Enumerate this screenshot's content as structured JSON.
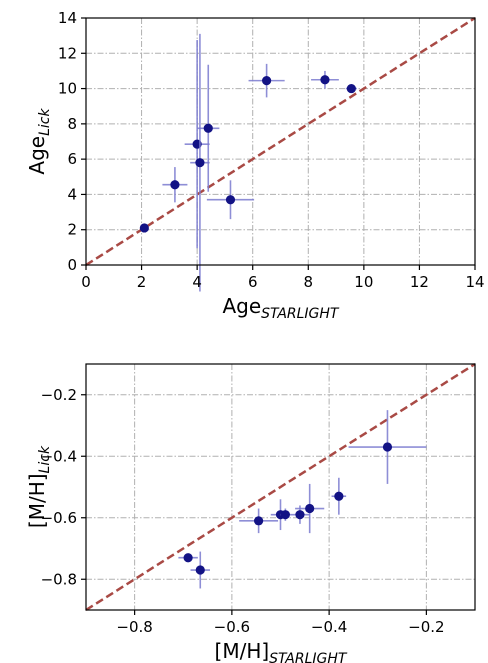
{
  "chart_data": [
    {
      "type": "scatter",
      "xlabel": "Age",
      "xlabel_sub": "STARLIGHT",
      "ylabel": "Age",
      "ylabel_sub": "Lick",
      "xlim": [
        0,
        14
      ],
      "ylim": [
        0,
        14
      ],
      "xticks": [
        0,
        2,
        4,
        6,
        8,
        10,
        12,
        14
      ],
      "yticks": [
        0,
        2,
        4,
        6,
        8,
        10,
        12,
        14
      ],
      "xtick_labels": [
        "0",
        "2",
        "4",
        "6",
        "8",
        "10",
        "12",
        "14"
      ],
      "ytick_labels": [
        "0",
        "2",
        "4",
        "6",
        "8",
        "10",
        "12",
        "14"
      ],
      "grid": true,
      "reference_line": "y = x",
      "points": [
        {
          "x": 2.1,
          "y": 2.1,
          "xerr": 0.15,
          "yerr": 0.15
        },
        {
          "x": 3.2,
          "y": 4.55,
          "xerr": 0.45,
          "yerr": 1.0
        },
        {
          "x": 4.0,
          "y": 6.85,
          "xerr": 0.45,
          "yerr": 5.9
        },
        {
          "x": 4.1,
          "y": 5.8,
          "xerr": 0.35,
          "yerr": 7.3
        },
        {
          "x": 4.4,
          "y": 7.75,
          "xerr": 0.4,
          "yerr": 3.6
        },
        {
          "x": 5.2,
          "y": 3.7,
          "xerr": 0.85,
          "yerr": 1.1
        },
        {
          "x": 6.5,
          "y": 10.45,
          "xerr": 0.65,
          "yerr": 0.95
        },
        {
          "x": 8.6,
          "y": 10.5,
          "xerr": 0.5,
          "yerr": 0.5
        },
        {
          "x": 9.55,
          "y": 10.0,
          "xerr": 0.2,
          "yerr": 0.1
        }
      ]
    },
    {
      "type": "scatter",
      "xlabel": "[M/H]",
      "xlabel_sub": "STARLIGHT",
      "ylabel": "[M/H]",
      "ylabel_sub": "Lick",
      "xlim": [
        -0.9,
        -0.1
      ],
      "ylim": [
        -0.9,
        -0.1
      ],
      "xticks": [
        -0.8,
        -0.6,
        -0.4,
        -0.2
      ],
      "yticks": [
        -0.8,
        -0.6,
        -0.4,
        -0.2
      ],
      "xtick_labels": [
        "−0.8",
        "−0.6",
        "−0.4",
        "−0.2"
      ],
      "ytick_labels": [
        "−0.8",
        "−0.6",
        "−0.4",
        "−0.2"
      ],
      "grid": true,
      "reference_line": "y = x",
      "points": [
        {
          "x": -0.69,
          "y": -0.73,
          "xerr": 0.02,
          "yerr": 0.01
        },
        {
          "x": -0.665,
          "y": -0.77,
          "xerr": 0.02,
          "yerr": 0.06
        },
        {
          "x": -0.545,
          "y": -0.61,
          "xerr": 0.04,
          "yerr": 0.04
        },
        {
          "x": -0.5,
          "y": -0.59,
          "xerr": 0.02,
          "yerr": 0.05
        },
        {
          "x": -0.49,
          "y": -0.59,
          "xerr": 0.01,
          "yerr": 0.02
        },
        {
          "x": -0.46,
          "y": -0.59,
          "xerr": 0.02,
          "yerr": 0.03
        },
        {
          "x": -0.44,
          "y": -0.57,
          "xerr": 0.03,
          "yerr": 0.08
        },
        {
          "x": -0.38,
          "y": -0.53,
          "xerr": 0.015,
          "yerr": 0.06
        },
        {
          "x": -0.28,
          "y": -0.37,
          "xerr": 0.08,
          "yerr": 0.12
        }
      ]
    }
  ]
}
